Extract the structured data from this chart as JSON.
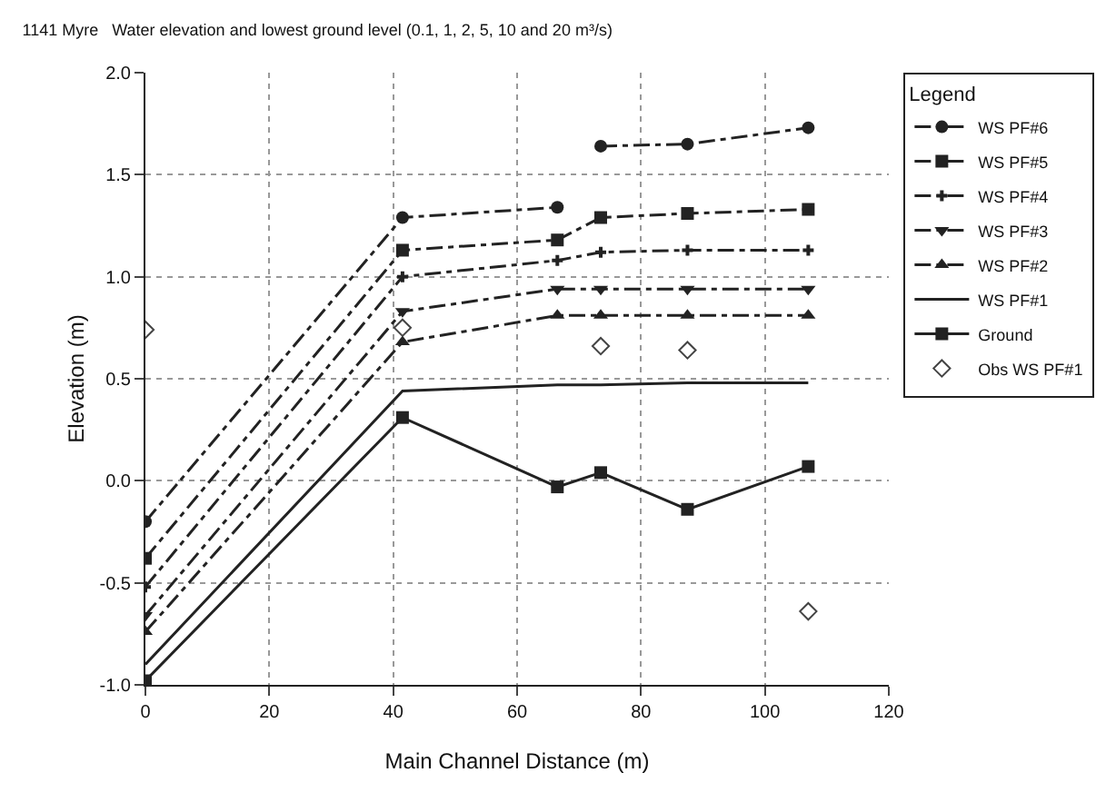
{
  "chart_data": {
    "type": "line",
    "title": "1141 Myre   Water elevation and lowest ground level (0.1, 1, 2, 5, 10 and 20 m³/s)",
    "xlabel": "Main Channel Distance (m)",
    "ylabel": "Elevation (m)",
    "legend_title": "Legend",
    "x": [
      0,
      41.5,
      66.5,
      73.5,
      87.5,
      107
    ],
    "series": [
      {
        "name": "WS PF#6",
        "color": "#222222",
        "marker": "circle",
        "line_style": "dashed",
        "x": [
          0,
          41.5,
          66.5,
          70,
          73.5,
          87.5,
          107
        ],
        "values": [
          -0.2,
          1.29,
          1.34,
          null,
          1.64,
          1.65,
          1.73
        ]
      },
      {
        "name": "WS PF#5",
        "color": "#222222",
        "marker": "square",
        "line_style": "dashed",
        "values": [
          -0.38,
          1.13,
          1.18,
          1.29,
          1.31,
          1.33
        ]
      },
      {
        "name": "WS PF#4",
        "color": "#222222",
        "marker": "cross",
        "line_style": "dashed",
        "values": [
          -0.52,
          1.0,
          1.08,
          1.12,
          1.13,
          1.13
        ]
      },
      {
        "name": "WS PF#3",
        "color": "#222222",
        "marker": "triangle-down",
        "line_style": "dashed",
        "values": [
          -0.66,
          0.83,
          0.94,
          0.94,
          0.94,
          0.94
        ]
      },
      {
        "name": "WS PF#2",
        "color": "#222222",
        "marker": "triangle",
        "line_style": "dashed",
        "values": [
          -0.74,
          0.68,
          0.81,
          0.81,
          0.81,
          0.81
        ]
      },
      {
        "name": "WS PF#1",
        "color": "#222222",
        "marker": "none",
        "line_style": "solid",
        "values": [
          -0.9,
          0.44,
          0.47,
          0.47,
          0.48,
          0.48
        ]
      },
      {
        "name": "Ground",
        "color": "#222222",
        "marker": "square",
        "line_style": "solid",
        "values": [
          -0.98,
          0.31,
          -0.03,
          0.04,
          -0.14,
          0.07
        ]
      },
      {
        "name": "Obs WS PF#1",
        "type": "scatter",
        "color": "#444444",
        "marker": "diamond-open",
        "x": [
          0,
          41.5,
          73.5,
          87.5,
          107
        ],
        "values": [
          0.74,
          0.75,
          0.66,
          0.64,
          -0.64
        ]
      }
    ],
    "xlim": [
      0,
      120
    ],
    "xticks": [
      0,
      20,
      40,
      60,
      80,
      100,
      120
    ],
    "ylim": [
      -1,
      2
    ],
    "yticks": [
      {
        "value": -1,
        "label": "-1.0"
      },
      -0.5,
      {
        "value": 0,
        "label": "0.0"
      },
      0.5,
      {
        "value": 1,
        "label": "1.0"
      },
      1.5,
      {
        "value": 2,
        "label": "2.0"
      }
    ],
    "grid": true,
    "legend": "right"
  }
}
